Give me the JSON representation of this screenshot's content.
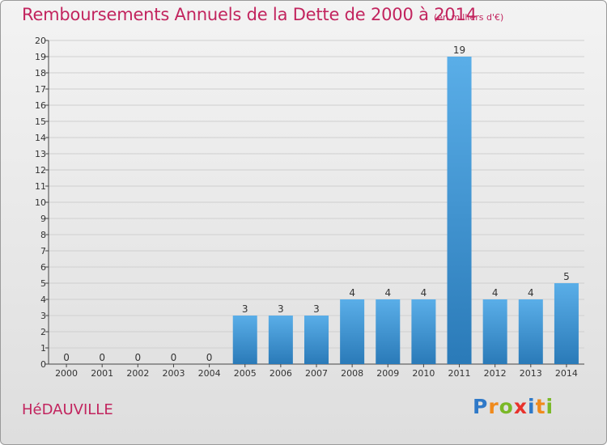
{
  "header": {
    "title": "Remboursements Annuels de la Dette de 2000 à 2014",
    "subtitle": "(en milliers d'€)"
  },
  "footer": {
    "commune": "HéDAUVILLE",
    "logo_letters": [
      "P",
      "r",
      "o",
      "x",
      "i",
      "t",
      "i"
    ]
  },
  "colors": {
    "title": "#c2245e",
    "bar_top": "#5aaee8",
    "bar_bottom": "#2a7ab8",
    "logo_letters": [
      "#2f79c8",
      "#f08a1c",
      "#7ab827",
      "#e8322c",
      "#2f79c8",
      "#f08a1c",
      "#7ab827"
    ]
  },
  "chart_data": {
    "type": "bar",
    "categories": [
      "2000",
      "2001",
      "2002",
      "2003",
      "2004",
      "2005",
      "2006",
      "2007",
      "2008",
      "2009",
      "2010",
      "2011",
      "2012",
      "2013",
      "2014"
    ],
    "values": [
      0,
      0,
      0,
      0,
      0,
      3,
      3,
      3,
      4,
      4,
      4,
      19,
      4,
      4,
      5
    ],
    "data_labels": [
      "0",
      "0",
      "0",
      "0",
      "0",
      "3",
      "3",
      "3",
      "4",
      "4",
      "4",
      "19",
      "4",
      "4",
      "5"
    ],
    "yticks": [
      "0",
      "1",
      "2",
      "3",
      "4",
      "5",
      "6",
      "7",
      "8",
      "9",
      "10",
      "11",
      "12",
      "13",
      "14",
      "15",
      "16",
      "17",
      "18",
      "19",
      "20"
    ],
    "ylim": [
      0,
      20
    ],
    "grid": true,
    "title": "Remboursements Annuels de la Dette de 2000 à 2014",
    "xlabel": "",
    "ylabel": ""
  }
}
